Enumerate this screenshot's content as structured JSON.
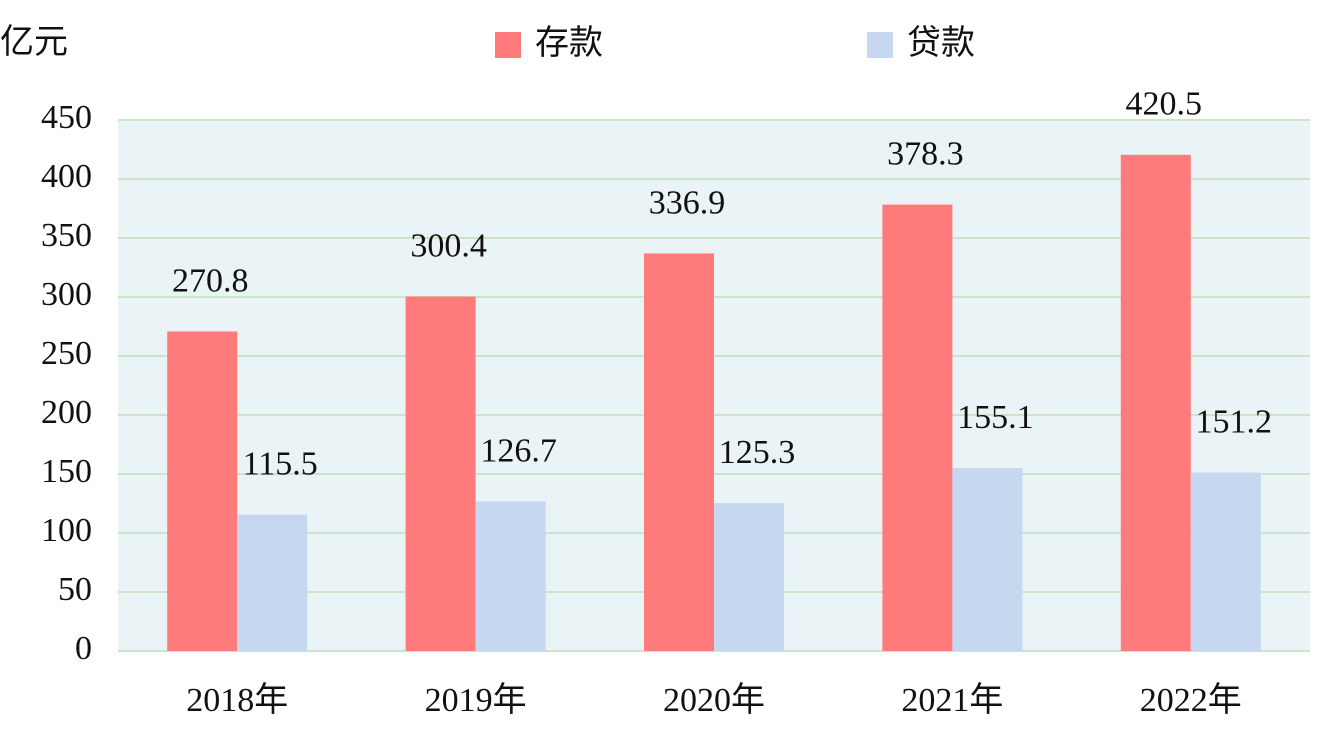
{
  "chart_data": {
    "type": "bar",
    "y_label": "亿元",
    "categories": [
      "2018年",
      "2019年",
      "2020年",
      "2021年",
      "2022年"
    ],
    "series": [
      {
        "name": "存款",
        "color": "#ff7b7b",
        "values": [
          270.8,
          300.4,
          336.9,
          378.3,
          420.5
        ]
      },
      {
        "name": "贷款",
        "color": "#c6d8f0",
        "values": [
          115.5,
          126.7,
          125.3,
          155.1,
          151.2
        ]
      }
    ],
    "ylim": [
      0,
      450
    ],
    "yticks": [
      0,
      50,
      100,
      150,
      200,
      250,
      300,
      350,
      400,
      450
    ],
    "grid": true,
    "legend": "top"
  }
}
